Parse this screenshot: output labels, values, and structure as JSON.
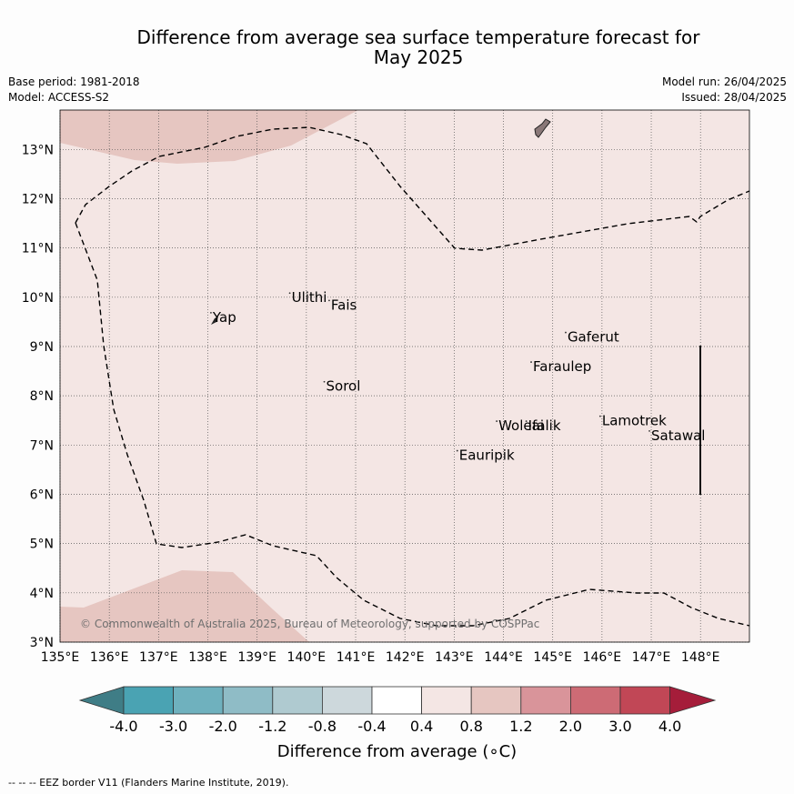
{
  "header": {
    "title_line1": "Difference from average sea surface temperature forecast for",
    "title_line2": "May 2025",
    "base_period": "Base period: 1981-2018",
    "model": "Model: ACCESS-S2",
    "model_run": "Model run: 26/04/2025",
    "issued": "Issued: 28/04/2025"
  },
  "map": {
    "lon_range": [
      135,
      149
    ],
    "lat_range": [
      3,
      13.8
    ],
    "lon_ticks": [
      "135°E",
      "136°E",
      "137°E",
      "138°E",
      "139°E",
      "140°E",
      "141°E",
      "142°E",
      "143°E",
      "144°E",
      "145°E",
      "146°E",
      "147°E",
      "148°E"
    ],
    "lat_ticks": [
      "3°N",
      "4°N",
      "5°N",
      "6°N",
      "7°N",
      "8°N",
      "9°N",
      "10°N",
      "11°N",
      "12°N",
      "13°N"
    ],
    "background_color": "#f4e6e4",
    "warm_region_color": "#e6c6c1",
    "places": [
      {
        "name": "Yap",
        "lon": 138.1,
        "lat": 9.5
      },
      {
        "name": "Ulithi",
        "lon": 139.7,
        "lat": 9.9
      },
      {
        "name": "Fais",
        "lon": 140.5,
        "lat": 9.75
      },
      {
        "name": "Gaferut",
        "lon": 145.3,
        "lat": 9.1
      },
      {
        "name": "Faraulep",
        "lon": 144.6,
        "lat": 8.5
      },
      {
        "name": "Sorol",
        "lon": 140.4,
        "lat": 8.1
      },
      {
        "name": "Lamotrek",
        "lon": 146.0,
        "lat": 7.4
      },
      {
        "name": "Satawal",
        "lon": 147.0,
        "lat": 7.1
      },
      {
        "name": "Woleai",
        "lon": 143.9,
        "lat": 7.3
      },
      {
        "name": "Ifalik",
        "lon": 144.5,
        "lat": 7.3
      },
      {
        "name": "Eauripik",
        "lon": 143.1,
        "lat": 6.7
      }
    ],
    "copyright": "© Commonwealth of Australia 2025, Bureau of Meteorology, supported by COSPPac"
  },
  "colorbar": {
    "colors": [
      "#3f7d86",
      "#4aa3b3",
      "#6fb1be",
      "#8fbcc6",
      "#afcad0",
      "#cdd8dc",
      "#ffffff",
      "#f4e6e4",
      "#e6c6c1",
      "#d9949a",
      "#cd6b75",
      "#c14756",
      "#a51d3a"
    ],
    "labels": [
      "-4.0",
      "-3.0",
      "-2.0",
      "-1.2",
      "-0.8",
      "-0.4",
      "0.4",
      "0.8",
      "1.2",
      "2.0",
      "3.0",
      "4.0"
    ],
    "title": "Difference from average (∘C)"
  },
  "footnote": "--  --  -- EEZ border V11 (Flanders Marine Institute, 2019)."
}
